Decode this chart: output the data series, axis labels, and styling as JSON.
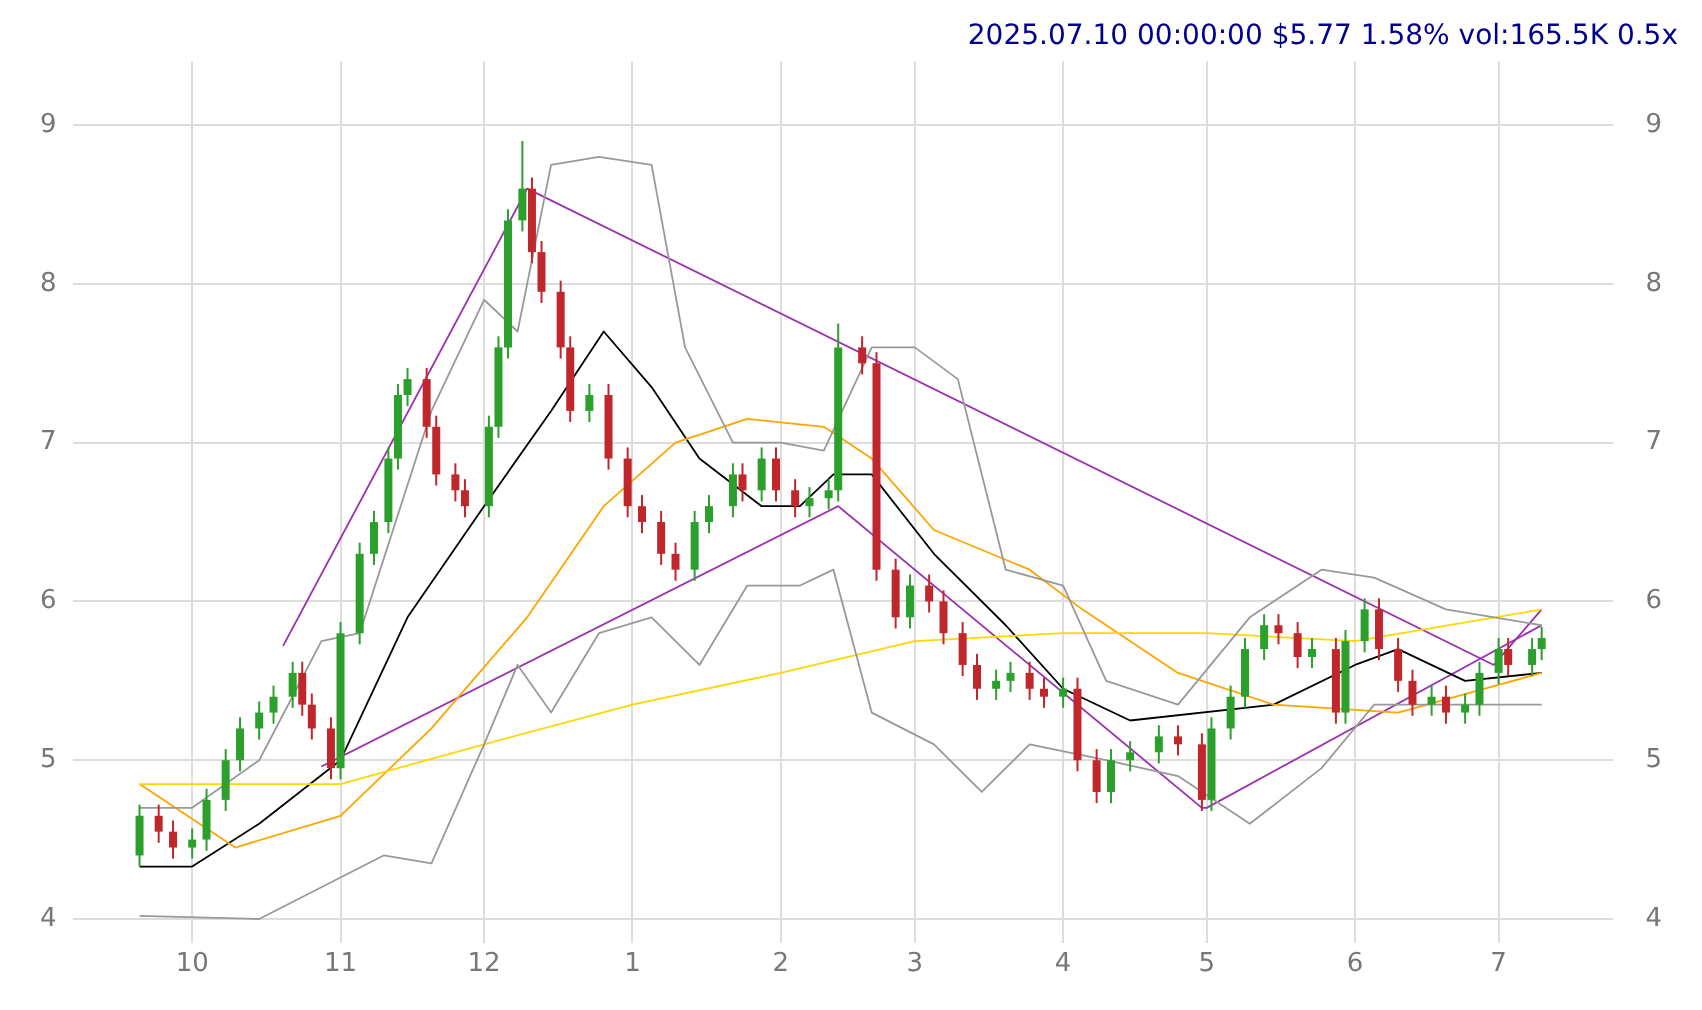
{
  "chart_data": {
    "type": "candlestick",
    "title": "2025.07.10 00:00:00 $5.77 1.58% vol:165.5K 0.5x",
    "xlim": [
      "2024-09-06",
      "2025-07-25"
    ],
    "xticks": [
      {
        "value": "2024-10-01",
        "label": "10"
      },
      {
        "value": "2024-11-01",
        "label": "11"
      },
      {
        "value": "2024-12-01",
        "label": "12"
      },
      {
        "value": "2025-01-01",
        "label": "1"
      },
      {
        "value": "2025-02-01",
        "label": "2"
      },
      {
        "value": "2025-03-01",
        "label": "3"
      },
      {
        "value": "2025-04-01",
        "label": "4"
      },
      {
        "value": "2025-05-01",
        "label": "5"
      },
      {
        "value": "2025-06-01",
        "label": "6"
      },
      {
        "value": "2025-07-01",
        "label": "7"
      }
    ],
    "ylim": [
      3.85,
      9.4
    ],
    "yticks": [
      4,
      5,
      6,
      7,
      8,
      9
    ],
    "y2lim": [
      3.85,
      9.4
    ],
    "y2ticks": [
      4,
      5,
      6,
      7,
      8,
      9
    ],
    "grid": true,
    "legend": false,
    "marker": "none",
    "series": [
      {
        "type": "candlestick",
        "x": [
          "2024-09-20",
          "2024-09-24",
          "2024-09-27",
          "2024-10-01",
          "2024-10-04",
          "2024-10-08",
          "2024-10-11",
          "2024-10-15",
          "2024-10-18",
          "2024-10-22",
          "2024-10-24",
          "2024-10-26",
          "2024-10-30",
          "2024-11-01",
          "2024-11-05",
          "2024-11-08",
          "2024-11-11",
          "2024-11-13",
          "2024-11-15",
          "2024-11-19",
          "2024-11-21",
          "2024-11-25",
          "2024-11-27",
          "2024-12-02",
          "2024-12-04",
          "2024-12-06",
          "2024-12-09",
          "2024-12-11",
          "2024-12-13",
          "2024-12-17",
          "2024-12-19",
          "2024-12-23",
          "2024-12-27",
          "2024-12-31",
          "2025-01-03",
          "2025-01-07",
          "2025-01-10",
          "2025-01-14",
          "2025-01-17",
          "2025-01-22",
          "2025-01-24",
          "2025-01-28",
          "2025-01-31",
          "2025-02-04",
          "2025-02-07",
          "2025-02-11",
          "2025-02-13",
          "2025-02-18",
          "2025-02-21",
          "2025-02-25",
          "2025-02-28",
          "2025-03-04",
          "2025-03-07",
          "2025-03-11",
          "2025-03-14",
          "2025-03-18",
          "2025-03-21",
          "2025-03-25",
          "2025-03-28",
          "2025-04-01",
          "2025-04-04",
          "2025-04-08",
          "2025-04-11",
          "2025-04-15",
          "2025-04-21",
          "2025-04-25",
          "2025-04-30",
          "2025-05-02",
          "2025-05-06",
          "2025-05-09",
          "2025-05-13",
          "2025-05-16",
          "2025-05-20",
          "2025-05-23",
          "2025-05-28",
          "2025-05-30",
          "2025-06-03",
          "2025-06-06",
          "2025-06-10",
          "2025-06-13",
          "2025-06-17",
          "2025-06-20",
          "2025-06-24",
          "2025-06-27",
          "2025-07-01",
          "2025-07-03",
          "2025-07-08",
          "2025-07-10"
        ],
        "ohlc": [
          [
            4.4,
            4.72,
            4.33,
            4.65
          ],
          [
            4.65,
            4.72,
            4.48,
            4.55
          ],
          [
            4.55,
            4.62,
            4.38,
            4.45
          ],
          [
            4.45,
            4.57,
            4.38,
            4.5
          ],
          [
            4.5,
            4.82,
            4.43,
            4.75
          ],
          [
            4.75,
            5.07,
            4.68,
            5.0
          ],
          [
            5.0,
            5.27,
            4.93,
            5.2
          ],
          [
            5.2,
            5.37,
            5.13,
            5.3
          ],
          [
            5.3,
            5.47,
            5.23,
            5.4
          ],
          [
            5.4,
            5.62,
            5.33,
            5.55
          ],
          [
            5.55,
            5.62,
            5.28,
            5.35
          ],
          [
            5.35,
            5.42,
            5.13,
            5.2
          ],
          [
            5.2,
            5.27,
            4.88,
            4.95
          ],
          [
            4.95,
            5.87,
            4.88,
            5.8
          ],
          [
            5.8,
            6.37,
            5.73,
            6.3
          ],
          [
            6.3,
            6.57,
            6.23,
            6.5
          ],
          [
            6.5,
            6.97,
            6.43,
            6.9
          ],
          [
            6.9,
            7.37,
            6.83,
            7.3
          ],
          [
            7.3,
            7.47,
            7.23,
            7.4
          ],
          [
            7.4,
            7.47,
            7.03,
            7.1
          ],
          [
            7.1,
            7.17,
            6.73,
            6.8
          ],
          [
            6.8,
            6.87,
            6.63,
            6.7
          ],
          [
            6.7,
            6.77,
            6.53,
            6.6
          ],
          [
            6.6,
            7.17,
            6.53,
            7.1
          ],
          [
            7.1,
            7.67,
            7.03,
            7.6
          ],
          [
            7.6,
            8.47,
            7.53,
            8.4
          ],
          [
            8.4,
            8.9,
            8.33,
            8.6
          ],
          [
            8.6,
            8.67,
            8.13,
            8.2
          ],
          [
            8.2,
            8.27,
            7.88,
            7.95
          ],
          [
            7.95,
            8.02,
            7.53,
            7.6
          ],
          [
            7.6,
            7.67,
            7.13,
            7.2
          ],
          [
            7.2,
            7.37,
            7.13,
            7.3
          ],
          [
            7.3,
            7.37,
            6.83,
            6.9
          ],
          [
            6.9,
            6.97,
            6.53,
            6.6
          ],
          [
            6.6,
            6.67,
            6.43,
            6.5
          ],
          [
            6.5,
            6.57,
            6.23,
            6.3
          ],
          [
            6.3,
            6.37,
            6.13,
            6.2
          ],
          [
            6.2,
            6.57,
            6.13,
            6.5
          ],
          [
            6.5,
            6.67,
            6.43,
            6.6
          ],
          [
            6.6,
            6.87,
            6.53,
            6.8
          ],
          [
            6.8,
            6.87,
            6.63,
            6.7
          ],
          [
            6.7,
            6.97,
            6.63,
            6.9
          ],
          [
            6.9,
            6.97,
            6.63,
            6.7
          ],
          [
            6.7,
            6.77,
            6.53,
            6.6
          ],
          [
            6.6,
            6.72,
            6.53,
            6.65
          ],
          [
            6.65,
            6.77,
            6.58,
            6.7
          ],
          [
            6.7,
            7.75,
            6.63,
            7.6
          ],
          [
            7.6,
            7.67,
            7.43,
            7.5
          ],
          [
            7.5,
            7.57,
            6.13,
            6.2
          ],
          [
            6.2,
            6.27,
            5.83,
            5.9
          ],
          [
            5.9,
            6.17,
            5.83,
            6.1
          ],
          [
            6.1,
            6.17,
            5.93,
            6.0
          ],
          [
            6.0,
            6.07,
            5.73,
            5.8
          ],
          [
            5.8,
            5.87,
            5.53,
            5.6
          ],
          [
            5.6,
            5.67,
            5.38,
            5.45
          ],
          [
            5.45,
            5.57,
            5.38,
            5.5
          ],
          [
            5.5,
            5.62,
            5.43,
            5.55
          ],
          [
            5.55,
            5.62,
            5.38,
            5.45
          ],
          [
            5.45,
            5.52,
            5.33,
            5.4
          ],
          [
            5.4,
            5.52,
            5.33,
            5.45
          ],
          [
            5.45,
            5.52,
            4.93,
            5.0
          ],
          [
            5.0,
            5.07,
            4.73,
            4.8
          ],
          [
            4.8,
            5.07,
            4.73,
            5.0
          ],
          [
            5.0,
            5.12,
            4.93,
            5.05
          ],
          [
            5.05,
            5.22,
            4.98,
            5.15
          ],
          [
            5.15,
            5.22,
            5.03,
            5.1
          ],
          [
            5.1,
            5.17,
            4.68,
            4.75
          ],
          [
            4.75,
            5.27,
            4.68,
            5.2
          ],
          [
            5.2,
            5.47,
            5.13,
            5.4
          ],
          [
            5.4,
            5.77,
            5.33,
            5.7
          ],
          [
            5.7,
            5.92,
            5.63,
            5.85
          ],
          [
            5.85,
            5.92,
            5.73,
            5.8
          ],
          [
            5.8,
            5.87,
            5.58,
            5.65
          ],
          [
            5.65,
            5.77,
            5.58,
            5.7
          ],
          [
            5.7,
            5.77,
            5.23,
            5.3
          ],
          [
            5.3,
            5.82,
            5.23,
            5.75
          ],
          [
            5.75,
            6.02,
            5.68,
            5.95
          ],
          [
            5.95,
            6.02,
            5.63,
            5.7
          ],
          [
            5.7,
            5.77,
            5.43,
            5.5
          ],
          [
            5.5,
            5.57,
            5.28,
            5.35
          ],
          [
            5.35,
            5.47,
            5.28,
            5.4
          ],
          [
            5.4,
            5.47,
            5.23,
            5.3
          ],
          [
            5.3,
            5.42,
            5.23,
            5.35
          ],
          [
            5.35,
            5.62,
            5.28,
            5.55
          ],
          [
            5.55,
            5.77,
            5.48,
            5.7
          ],
          [
            5.7,
            5.77,
            5.53,
            5.6
          ],
          [
            5.6,
            5.77,
            5.53,
            5.7
          ],
          [
            5.7,
            5.84,
            5.63,
            5.77
          ]
        ],
        "colors": [
          "#2ca02c",
          "#c0272d",
          "#c0272d",
          "#2ca02c",
          "#2ca02c",
          "#2ca02c",
          "#2ca02c",
          "#2ca02c",
          "#2ca02c",
          "#2ca02c",
          "#c0272d",
          "#c0272d",
          "#c0272d",
          "#2ca02c",
          "#2ca02c",
          "#2ca02c",
          "#2ca02c",
          "#2ca02c",
          "#2ca02c",
          "#c0272d",
          "#c0272d",
          "#c0272d",
          "#c0272d",
          "#2ca02c",
          "#2ca02c",
          "#2ca02c",
          "#2ca02c",
          "#c0272d",
          "#c0272d",
          "#c0272d",
          "#c0272d",
          "#2ca02c",
          "#c0272d",
          "#c0272d",
          "#c0272d",
          "#c0272d",
          "#c0272d",
          "#2ca02c",
          "#2ca02c",
          "#2ca02c",
          "#c0272d",
          "#2ca02c",
          "#c0272d",
          "#c0272d",
          "#2ca02c",
          "#2ca02c",
          "#2ca02c",
          "#c0272d",
          "#c0272d",
          "#c0272d",
          "#2ca02c",
          "#c0272d",
          "#c0272d",
          "#c0272d",
          "#c0272d",
          "#2ca02c",
          "#2ca02c",
          "#c0272d",
          "#c0272d",
          "#2ca02c",
          "#c0272d",
          "#c0272d",
          "#2ca02c",
          "#2ca02c",
          "#2ca02c",
          "#c0272d",
          "#c0272d",
          "#2ca02c",
          "#2ca02c",
          "#2ca02c",
          "#2ca02c",
          "#c0272d",
          "#c0272d",
          "#2ca02c",
          "#c0272d",
          "#2ca02c",
          "#2ca02c",
          "#c0272d",
          "#c0272d",
          "#c0272d",
          "#2ca02c",
          "#c0272d",
          "#2ca02c",
          "#2ca02c",
          "#2ca02c",
          "#c0272d",
          "#2ca02c",
          "#2ca02c"
        ]
      },
      {
        "type": "line",
        "color": "#999999",
        "x": [
          "2024-09-20",
          "2024-10-01",
          "2024-10-15",
          "2024-10-28",
          "2024-11-05",
          "2024-11-20",
          "2024-12-01",
          "2024-12-08",
          "2024-12-15",
          "2024-12-25",
          "2025-01-05",
          "2025-01-12",
          "2025-01-22",
          "2025-02-01",
          "2025-02-10",
          "2025-02-20",
          "2025-03-01",
          "2025-03-10",
          "2025-03-20",
          "2025-04-01",
          "2025-04-10",
          "2025-04-25",
          "2025-05-10",
          "2025-05-25",
          "2025-06-05",
          "2025-06-20",
          "2025-07-10"
        ],
        "values": [
          4.7,
          4.7,
          5.0,
          5.75,
          5.8,
          7.2,
          7.9,
          7.7,
          8.75,
          8.8,
          8.75,
          7.6,
          7.0,
          7.0,
          6.95,
          7.6,
          7.6,
          7.4,
          6.2,
          6.1,
          5.5,
          5.35,
          5.9,
          6.2,
          6.15,
          5.95,
          5.85
        ]
      },
      {
        "type": "line",
        "color": "#999999",
        "x": [
          "2024-09-20",
          "2024-10-15",
          "2024-10-28",
          "2024-11-10",
          "2024-11-20",
          "2024-12-01",
          "2024-12-08",
          "2024-12-15",
          "2024-12-25",
          "2025-01-05",
          "2025-01-15",
          "2025-01-25",
          "2025-02-05",
          "2025-02-12",
          "2025-02-20",
          "2025-03-05",
          "2025-03-15",
          "2025-03-25",
          "2025-04-10",
          "2025-04-25",
          "2025-05-10",
          "2025-05-25",
          "2025-06-05",
          "2025-06-20",
          "2025-07-10"
        ],
        "values": [
          4.02,
          4.0,
          4.2,
          4.4,
          4.35,
          5.1,
          5.6,
          5.3,
          5.8,
          5.9,
          5.6,
          6.1,
          6.1,
          6.2,
          5.3,
          5.1,
          4.8,
          5.1,
          5.0,
          4.9,
          4.6,
          4.95,
          5.35,
          5.35,
          5.35
        ]
      },
      {
        "type": "line",
        "color": "#ffd700",
        "x": [
          "2024-09-20",
          "2024-11-01",
          "2024-12-01",
          "2025-01-01",
          "2025-02-01",
          "2025-03-01",
          "2025-04-01",
          "2025-05-01",
          "2025-06-01",
          "2025-07-10"
        ],
        "values": [
          4.85,
          4.85,
          5.1,
          5.35,
          5.55,
          5.75,
          5.8,
          5.8,
          5.75,
          5.95
        ]
      },
      {
        "type": "line",
        "color": "#ffa500",
        "x": [
          "2024-09-20",
          "2024-10-10",
          "2024-11-01",
          "2024-11-20",
          "2024-12-10",
          "2024-12-26",
          "2025-01-10",
          "2025-01-25",
          "2025-02-10",
          "2025-02-20",
          "2025-03-05",
          "2025-03-25",
          "2025-04-05",
          "2025-04-25",
          "2025-05-15",
          "2025-06-10",
          "2025-07-10"
        ],
        "values": [
          4.85,
          4.45,
          4.65,
          5.2,
          5.9,
          6.6,
          7.0,
          7.15,
          7.1,
          6.9,
          6.45,
          6.2,
          5.95,
          5.55,
          5.35,
          5.3,
          5.55
        ]
      },
      {
        "type": "line",
        "color": "#000000",
        "x": [
          "2024-09-20",
          "2024-10-01",
          "2024-10-15",
          "2024-11-01",
          "2024-11-15",
          "2024-12-01",
          "2024-12-15",
          "2024-12-26",
          "2025-01-05",
          "2025-01-15",
          "2025-01-28",
          "2025-02-05",
          "2025-02-12",
          "2025-02-20",
          "2025-03-05",
          "2025-03-20",
          "2025-04-01",
          "2025-04-15",
          "2025-05-15",
          "2025-06-01",
          "2025-06-10",
          "2025-06-24",
          "2025-07-10"
        ],
        "values": [
          4.33,
          4.33,
          4.6,
          5.0,
          5.9,
          6.6,
          7.2,
          7.7,
          7.35,
          6.9,
          6.6,
          6.6,
          6.8,
          6.8,
          6.3,
          5.85,
          5.45,
          5.25,
          5.35,
          5.6,
          5.7,
          5.5,
          5.55
        ]
      },
      {
        "type": "line",
        "color": "#9b30b0",
        "x": [
          "2024-10-20",
          "2024-12-10",
          "2025-06-30",
          "2025-07-10"
        ],
        "values": [
          5.72,
          8.6,
          5.6,
          5.95
        ]
      },
      {
        "type": "line",
        "color": "#9b30b0",
        "x": [
          "2024-10-28",
          "2025-02-13",
          "2025-04-30",
          "2025-05-01",
          "2025-07-10"
        ],
        "values": [
          4.96,
          6.6,
          4.7,
          4.7,
          5.85
        ]
      }
    ]
  }
}
